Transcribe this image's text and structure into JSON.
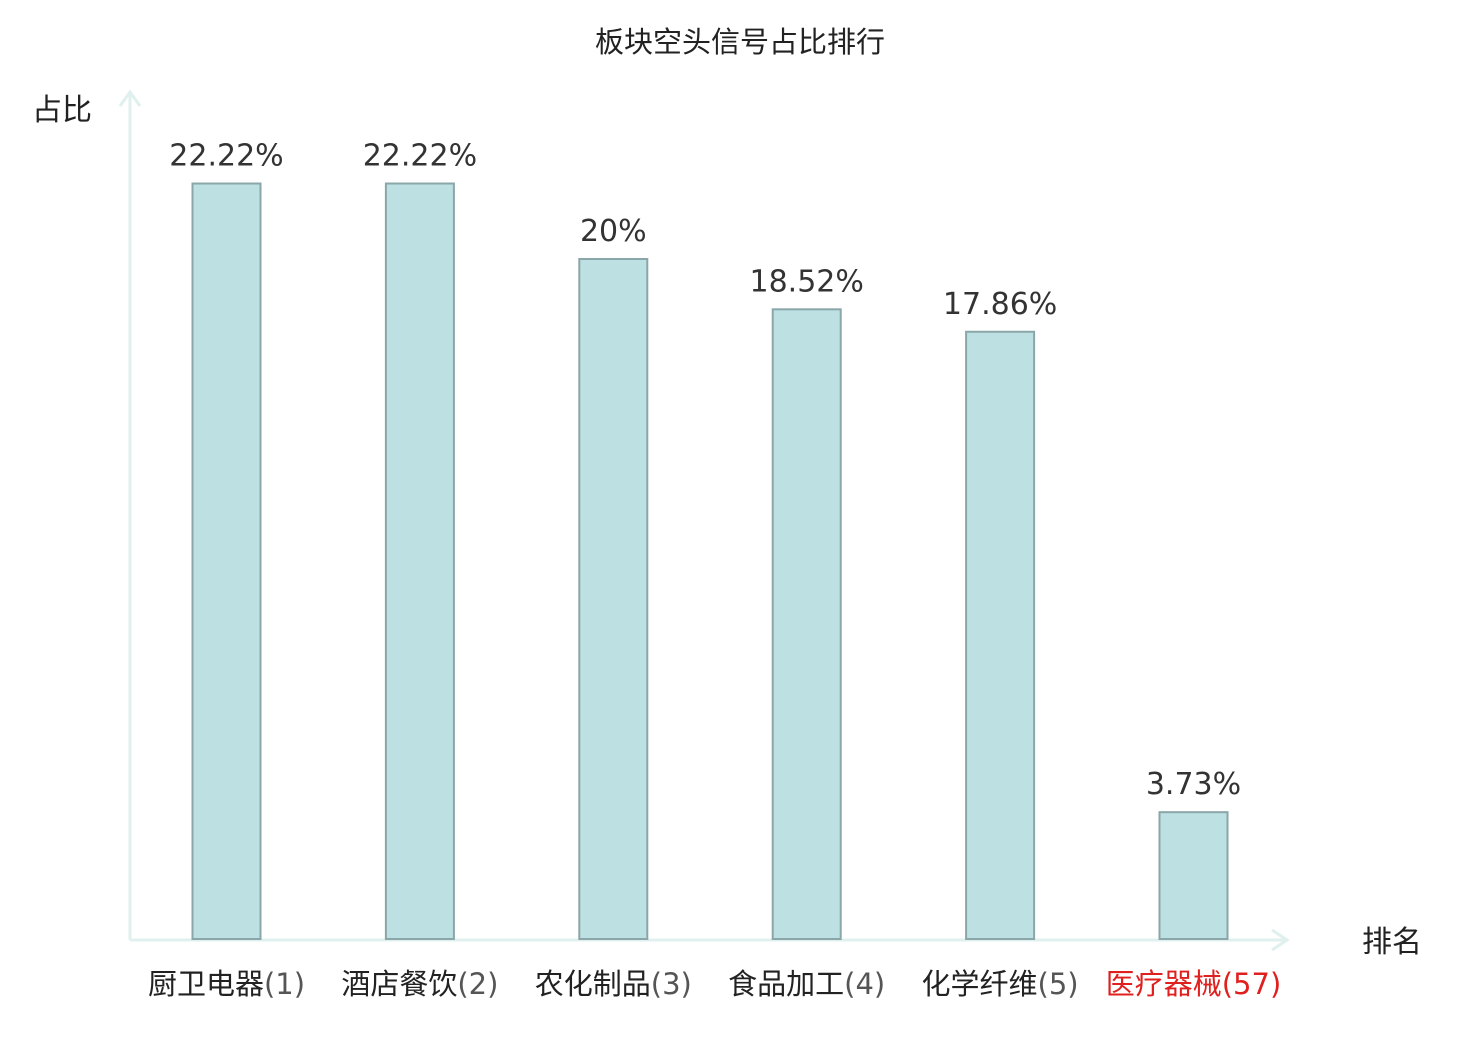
{
  "chart_data": {
    "type": "bar",
    "title": "板块空头信号占比排行",
    "ylabel": "占比",
    "xlabel": "排名",
    "categories": [
      {
        "name": "厨卫电器",
        "rank": "(1)",
        "highlight": false
      },
      {
        "name": "酒店餐饮",
        "rank": "(2)",
        "highlight": false
      },
      {
        "name": "农化制品",
        "rank": "(3)",
        "highlight": false
      },
      {
        "name": "食品加工",
        "rank": "(4)",
        "highlight": false
      },
      {
        "name": "化学纤维",
        "rank": "(5)",
        "highlight": false
      },
      {
        "name": "医疗器械",
        "rank": "(57)",
        "highlight": true
      }
    ],
    "values": [
      22.22,
      22.22,
      20,
      18.52,
      17.86,
      3.73
    ],
    "value_labels": [
      "22.22%",
      "22.22%",
      "20%",
      "18.52%",
      "17.86%",
      "3.73%"
    ],
    "ylim": [
      0,
      25
    ],
    "grid": false,
    "colors": {
      "bar_fill": "#bde0e2",
      "bar_stroke": "#8aa6a8",
      "axis": "#dff0ee",
      "highlight": "#e0201f",
      "rank": "#555555",
      "text": "#222222"
    }
  }
}
